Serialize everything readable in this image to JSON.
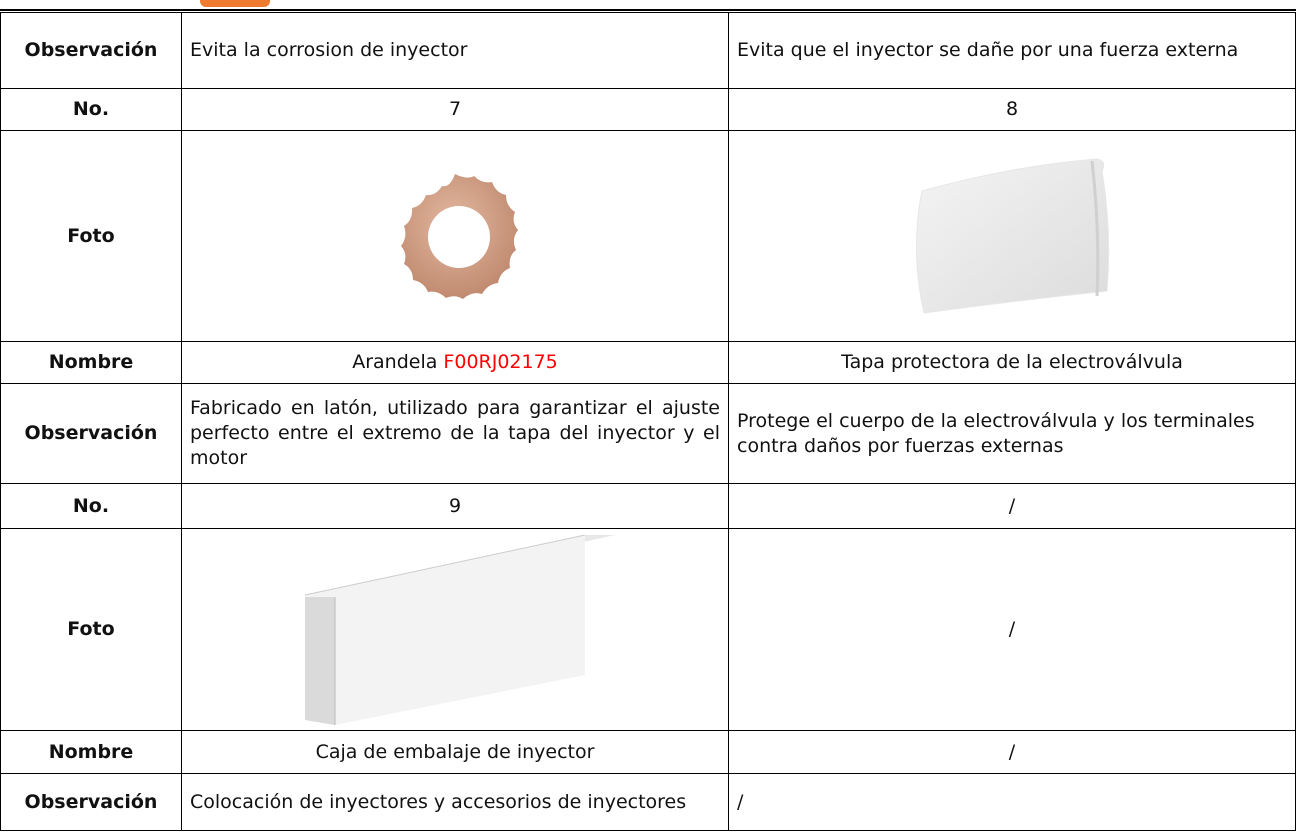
{
  "table": {
    "rows": [
      {
        "label": "Observación",
        "cells": [
          "Evita la corrosion de inyector",
          "Evita que el inyector se dañe por una fuerza externa"
        ]
      },
      {
        "label": "No.",
        "cells": [
          "7",
          "8"
        ]
      },
      {
        "label": "Foto",
        "cells": [
          null,
          null
        ]
      },
      {
        "label": "Nombre",
        "cells": [
          {
            "text": "Arandela",
            "code": "F00RJ02175"
          },
          "Tapa protectora de la electroválvula"
        ]
      },
      {
        "label": "Observación",
        "cells": [
          "Fabricado en latón, utilizado para garantizar el ajuste perfecto entre el extremo de la tapa del inyector y el motor",
          "Protege el cuerpo de la electroválvula y los terminales contra daños por fuerzas externas"
        ]
      },
      {
        "label": "No.",
        "cells": [
          "9",
          "/"
        ]
      },
      {
        "label": "Foto",
        "cells": [
          null,
          "/"
        ]
      },
      {
        "label": "Nombre",
        "cells": [
          "Caja de embalaje de inyector",
          "/"
        ]
      },
      {
        "label": "Observación",
        "cells": [
          "Colocación de inyectores y accesorios de inyectores",
          "/"
        ]
      }
    ]
  }
}
